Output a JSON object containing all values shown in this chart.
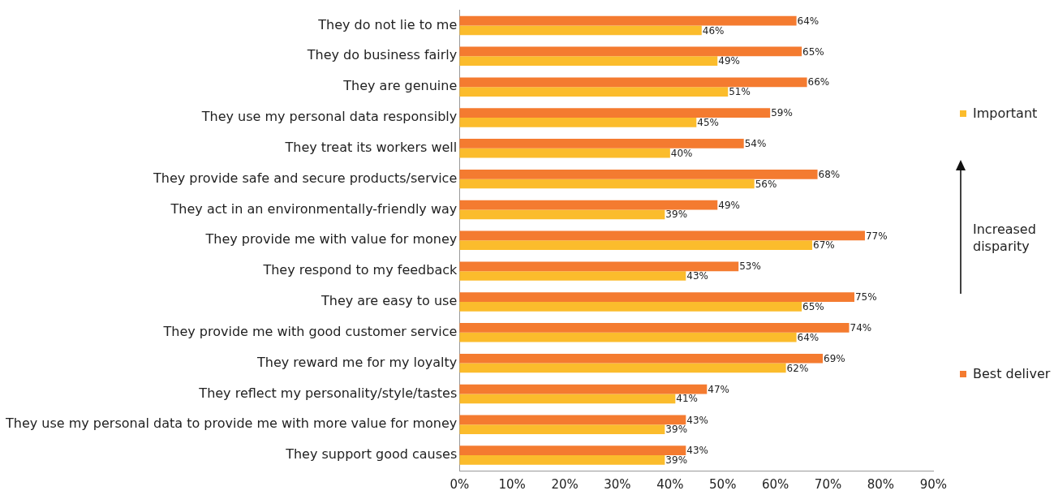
{
  "chart_data": {
    "type": "bar",
    "orientation": "horizontal",
    "categories": [
      "They do not lie to me",
      "They do business fairly",
      "They are genuine",
      "They use my personal data responsibly",
      "They treat its workers well",
      "They provide safe and secure products/service",
      "They act in an environmentally-friendly way",
      "They provide me with value for money",
      "They respond to my feedback",
      "They are easy to use",
      "They provide me with good customer service",
      "They reward me for my loyalty",
      "They reflect my personality/style/tastes",
      "They use my personal data to provide me with more value for money",
      "They support good causes"
    ],
    "series": [
      {
        "name": "Best deliver",
        "color": "#f47b30",
        "values": [
          64,
          65,
          66,
          59,
          54,
          68,
          49,
          77,
          53,
          75,
          74,
          69,
          47,
          43,
          43
        ],
        "value_labels": [
          "64%",
          "65%",
          "66%",
          "59%",
          "54%",
          "68%",
          "49%",
          "77%",
          "53%",
          "75%",
          "74%",
          "69%",
          "47%",
          "43%",
          "43%"
        ]
      },
      {
        "name": "Important",
        "color": "#fbbc2c",
        "values": [
          46,
          49,
          51,
          45,
          40,
          56,
          39,
          67,
          43,
          65,
          64,
          62,
          41,
          39,
          39
        ],
        "value_labels": [
          "46%",
          "49%",
          "51%",
          "45%",
          "40%",
          "56%",
          "39%",
          "67%",
          "43%",
          "65%",
          "64%",
          "62%",
          "41%",
          "39%",
          "39%"
        ]
      }
    ],
    "xlim": [
      0,
      90
    ],
    "xticks": [
      {
        "value": 0,
        "label": "0%"
      },
      {
        "value": 10,
        "label": "10%"
      },
      {
        "value": 20,
        "label": "20%"
      },
      {
        "value": 30,
        "label": "30%"
      },
      {
        "value": 40,
        "label": "40%"
      },
      {
        "value": 50,
        "label": "50%"
      },
      {
        "value": 60,
        "label": "60%"
      },
      {
        "value": 70,
        "label": "70%"
      },
      {
        "value": 80,
        "label": "80%"
      },
      {
        "value": 90,
        "label": "90%"
      }
    ],
    "grid": false,
    "legend": "right",
    "annotations": [
      "Increased disparity"
    ]
  }
}
